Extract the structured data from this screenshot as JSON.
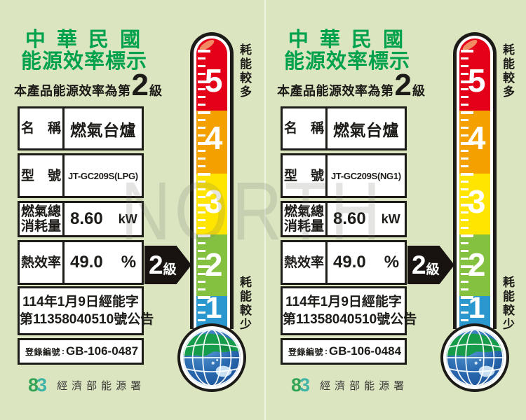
{
  "watermark": "NORTH",
  "colors": {
    "background": "#dbe5c0",
    "title_green": "#00a14d",
    "text_black": "#1d1b18",
    "level5_red": "#e50019",
    "level4_orange": "#f4a100",
    "level3_yellow": "#ffe500",
    "level2_green": "#85c140",
    "level1_blue": "#2b97cf",
    "arrow_black": "#181310",
    "globe_ocean": "#2a6ab1",
    "globe_land": "#179c4b",
    "globe_land_pale": "#c9e0f2",
    "logo_green": "#33a456",
    "logo_teal": "#3eb3a6",
    "watermark_gray": "#6e7268"
  },
  "labels": [
    {
      "title_line1": "中 華 民 國",
      "title_line2": "能源效率標示",
      "grade_statement": {
        "prefix": "本產品能源效率為第",
        "grade": "2",
        "suffix": "級"
      },
      "table": {
        "name_label": "名　稱",
        "name_value": "燃氣台爐",
        "model_label": "型　號",
        "model_value": "JT-GC209S(LPG)",
        "consumption_label_line1": "燃氣總",
        "consumption_label_line2": "消耗量",
        "consumption_value": "8.60",
        "consumption_unit": "kW",
        "efficiency_label": "熱效率",
        "efficiency_value": "49.0",
        "efficiency_unit": "%"
      },
      "announcement_line1": "114年1月9日經能字",
      "announcement_line2": "第11358040510號公告",
      "registration": {
        "label": "登錄編號",
        "separator": ":",
        "value": "GB-106-0487"
      },
      "agency": {
        "logo_glyph_left": "8",
        "logo_glyph_right": "3",
        "name": "經濟部能源署"
      },
      "grade_arrow": {
        "number": "2",
        "unit": "級"
      },
      "thermometer": {
        "top_annotation": "耗能較多",
        "bottom_annotation": "耗能較少",
        "levels": [
          "5",
          "4",
          "3",
          "2",
          "1"
        ]
      }
    },
    {
      "title_line1": "中 華 民 國",
      "title_line2": "能源效率標示",
      "grade_statement": {
        "prefix": "本產品能源效率為第",
        "grade": "2",
        "suffix": "級"
      },
      "table": {
        "name_label": "名　稱",
        "name_value": "燃氣台爐",
        "model_label": "型　號",
        "model_value": "JT-GC209S(NG1)",
        "consumption_label_line1": "燃氣總",
        "consumption_label_line2": "消耗量",
        "consumption_value": "8.60",
        "consumption_unit": "kW",
        "efficiency_label": "熱效率",
        "efficiency_value": "49.0",
        "efficiency_unit": "%"
      },
      "announcement_line1": "114年1月9日經能字",
      "announcement_line2": "第11358040510號公告",
      "registration": {
        "label": "登錄編號",
        "separator": ":",
        "value": "GB-106-0484"
      },
      "agency": {
        "logo_glyph_left": "8",
        "logo_glyph_right": "3",
        "name": "經濟部能源署"
      },
      "grade_arrow": {
        "number": "2",
        "unit": "級"
      },
      "thermometer": {
        "top_annotation": "耗能較多",
        "bottom_annotation": "耗能較少",
        "levels": [
          "5",
          "4",
          "3",
          "2",
          "1"
        ]
      }
    }
  ]
}
